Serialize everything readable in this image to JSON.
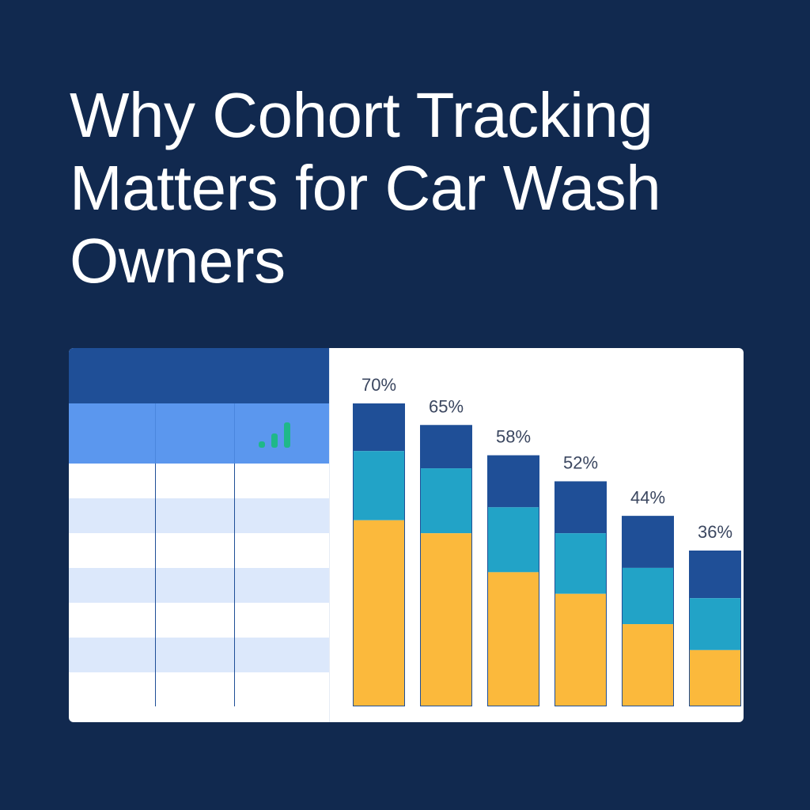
{
  "page": {
    "title": "Why Cohort Tracking Matters for Car Wash Owners"
  },
  "table": {
    "columns": 3,
    "body_rows": 7,
    "header_icon": "bar-signal-icon"
  },
  "colors": {
    "background": "#11294f",
    "table_top": "#1f4f97",
    "table_header": "#5b97ee",
    "row_light": "#dce8fb",
    "icon": "#1fb889",
    "segment_top": "#1f4f97",
    "segment_middle": "#22a3c7",
    "segment_bottom": "#fbb93c",
    "label": "#3b4760"
  },
  "chart_data": {
    "type": "bar",
    "stacked": true,
    "categories": [
      "",
      "",
      "",
      "",
      "",
      ""
    ],
    "labels": [
      "70%",
      "65%",
      "58%",
      "52%",
      "44%",
      "36%"
    ],
    "values": [
      70,
      65,
      58,
      52,
      44,
      36
    ],
    "series": [
      {
        "values": [
          11,
          10,
          12,
          12,
          12,
          11
        ]
      },
      {
        "values": [
          16,
          15,
          15,
          14,
          13,
          12
        ]
      },
      {
        "values": [
          43,
          40,
          31,
          26,
          19,
          13
        ]
      }
    ],
    "ylim": [
      0,
      70
    ],
    "grid": false,
    "legend": "none"
  }
}
